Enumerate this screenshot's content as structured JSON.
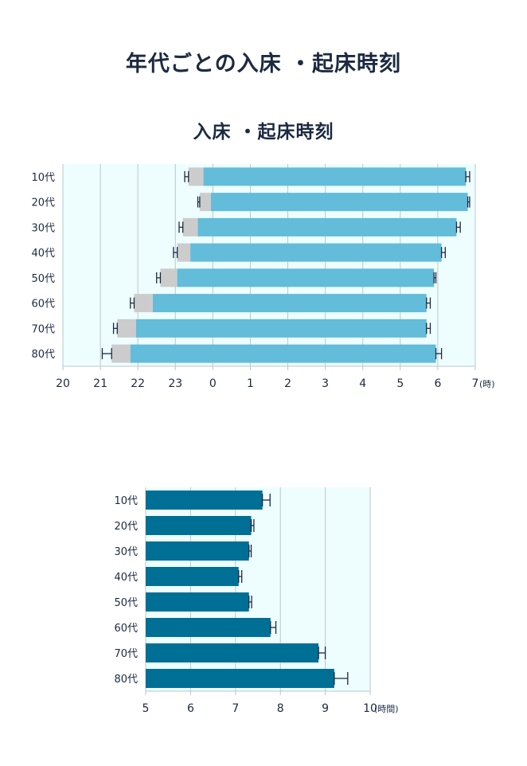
{
  "page_title": "年代ごとの入床 ・起床時刻",
  "colors": {
    "plot_bg": "#eefeff",
    "grid": "#bcc6cc",
    "bed_bar": "#62bcda",
    "latency_bar": "#cccccc",
    "sleep_bar": "#006f96",
    "error": "#1b2a41"
  },
  "chart_data": [
    {
      "type": "bar",
      "orientation": "horizontal",
      "title": "入床 ・起床時刻",
      "categories": [
        "10代",
        "20代",
        "30代",
        "40代",
        "50代",
        "60代",
        "70代",
        "80代"
      ],
      "x_tick_labels": [
        "20",
        "21",
        "22",
        "23",
        "0",
        "1",
        "2",
        "3",
        "4",
        "5",
        "6",
        "7"
      ],
      "x_unit": "(時)",
      "xlim": [
        20,
        31
      ],
      "grid": true,
      "series": [
        {
          "values": [
            23.35,
            23.65,
            23.2,
            23.05,
            22.6,
            21.9,
            21.45,
            21.3
          ],
          "error": [
            0.1,
            0.05,
            0.1,
            0.1,
            0.1,
            0.1,
            0.1,
            0.25
          ]
        },
        {
          "values": [
            23.75,
            23.95,
            23.6,
            23.4,
            23.05,
            22.4,
            21.95,
            21.8
          ]
        },
        {
          "values": [
            30.75,
            30.8,
            30.5,
            30.1,
            29.9,
            29.7,
            29.7,
            29.95
          ],
          "error": [
            0.1,
            0.05,
            0.1,
            0.1,
            0.05,
            0.1,
            0.1,
            0.15
          ]
        }
      ]
    },
    {
      "type": "bar",
      "orientation": "horizontal",
      "categories": [
        "10代",
        "20代",
        "30代",
        "40代",
        "50代",
        "60代",
        "70代",
        "80代"
      ],
      "x_tick_labels": [
        "5",
        "6",
        "7",
        "8",
        "9",
        "10"
      ],
      "x_unit": "(時間)",
      "xlim": [
        5,
        10
      ],
      "grid": true,
      "series": [
        {
          "values": [
            7.6,
            7.35,
            7.3,
            7.07,
            7.3,
            7.78,
            8.85,
            9.2
          ],
          "error": [
            0.17,
            0.06,
            0.05,
            0.07,
            0.06,
            0.12,
            0.15,
            0.3
          ]
        }
      ]
    }
  ]
}
